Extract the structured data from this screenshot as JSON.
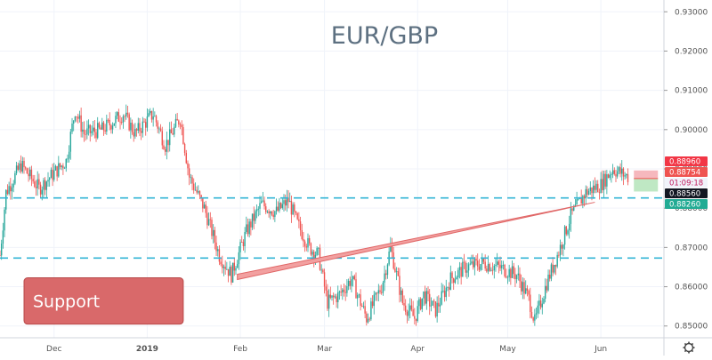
{
  "chart_data": {
    "type": "candlestick",
    "title": "EUR/GBP",
    "ylim": [
      0.847,
      0.933
    ],
    "xlim": [
      "2018-11-13",
      "2019-06-22"
    ],
    "grid": true,
    "y_ticks": [
      "0.93000",
      "0.92000",
      "0.91000",
      "0.90000",
      "0.89000",
      "0.88000",
      "0.87000",
      "0.86000",
      "0.85000"
    ],
    "y_tick_values": [
      0.93,
      0.92,
      0.91,
      0.9,
      0.89,
      0.88,
      0.87,
      0.86,
      0.85
    ],
    "x_ticks": [
      {
        "label": "Dec",
        "date": "2018-12-01"
      },
      {
        "label": "2019",
        "date": "2019-01-01"
      },
      {
        "label": "Feb",
        "date": "2019-02-01"
      },
      {
        "label": "Mar",
        "date": "2019-03-01"
      },
      {
        "label": "Apr",
        "date": "2019-04-01"
      },
      {
        "label": "May",
        "date": "2019-05-01"
      },
      {
        "label": "Jun",
        "date": "2019-06-01"
      }
    ],
    "price_path": [
      [
        "2018-11-13",
        0.868
      ],
      [
        "2018-11-15",
        0.884
      ],
      [
        "2018-11-20",
        0.891
      ],
      [
        "2018-11-26",
        0.885
      ],
      [
        "2018-12-01",
        0.889
      ],
      [
        "2018-12-05",
        0.892
      ],
      [
        "2018-12-08",
        0.905
      ],
      [
        "2018-12-11",
        0.899
      ],
      [
        "2018-12-17",
        0.9
      ],
      [
        "2018-12-24",
        0.904
      ],
      [
        "2018-12-28",
        0.899
      ],
      [
        "2019-01-03",
        0.904
      ],
      [
        "2019-01-07",
        0.896
      ],
      [
        "2019-01-12",
        0.903
      ],
      [
        "2019-01-15",
        0.888
      ],
      [
        "2019-01-20",
        0.88
      ],
      [
        "2019-01-25",
        0.868
      ],
      [
        "2019-01-29",
        0.863
      ],
      [
        "2019-02-03",
        0.874
      ],
      [
        "2019-02-08",
        0.881
      ],
      [
        "2019-02-13",
        0.879
      ],
      [
        "2019-02-17",
        0.882
      ],
      [
        "2019-02-20",
        0.876
      ],
      [
        "2019-02-24",
        0.87
      ],
      [
        "2019-02-27",
        0.868
      ],
      [
        "2019-03-02",
        0.856
      ],
      [
        "2019-03-06",
        0.858
      ],
      [
        "2019-03-10",
        0.862
      ],
      [
        "2019-03-15",
        0.852
      ],
      [
        "2019-03-20",
        0.86
      ],
      [
        "2019-03-23",
        0.87
      ],
      [
        "2019-03-27",
        0.856
      ],
      [
        "2019-03-31",
        0.852
      ],
      [
        "2019-04-03",
        0.858
      ],
      [
        "2019-04-07",
        0.854
      ],
      [
        "2019-04-12",
        0.862
      ],
      [
        "2019-04-17",
        0.865
      ],
      [
        "2019-04-23",
        0.866
      ],
      [
        "2019-04-28",
        0.865
      ],
      [
        "2019-05-04",
        0.863
      ],
      [
        "2019-05-08",
        0.857
      ],
      [
        "2019-05-10",
        0.851
      ],
      [
        "2019-05-14",
        0.861
      ],
      [
        "2019-05-18",
        0.869
      ],
      [
        "2019-05-22",
        0.878
      ],
      [
        "2019-05-27",
        0.884
      ],
      [
        "2019-06-01",
        0.886
      ],
      [
        "2019-06-05",
        0.89
      ],
      [
        "2019-06-10",
        0.888
      ]
    ],
    "horizontal_lines": [
      {
        "name": "upper-support-line",
        "y": 0.8826,
        "style": "dashed",
        "color": "#33b5d6"
      },
      {
        "name": "lower-support-line",
        "y": 0.8673,
        "style": "dashed",
        "color": "#33b5d6"
      }
    ],
    "support_wedge": {
      "start": [
        "2019-01-31",
        0.8625
      ],
      "end": [
        "2019-05-30",
        0.8815
      ],
      "color": "#e06666"
    },
    "annotation": {
      "text": "Support",
      "color": "#d9696a",
      "x_start": "2018-11-21",
      "x_end": "2019-01-13",
      "y_top": 0.86,
      "y_bottom": 0.855
    },
    "position_box": {
      "x_start": "2019-06-12",
      "x_end": "2019-06-20",
      "entry": 0.88754,
      "target": 0.8896,
      "stop": 0.8856,
      "target_color": "#f6b8bd",
      "stop_color": "#bfe8c4"
    },
    "price_labels": [
      {
        "text": "0.88960",
        "y": 0.8896,
        "bg": "#f23645",
        "fg": "#ffffff"
      },
      {
        "text": "0.88754",
        "y": 0.88754,
        "bg": "#ef5350",
        "fg": "#ffffff"
      },
      {
        "text": "01:09:18",
        "y": 0.886,
        "bg": "#f0f3fa",
        "fg": "#c2185b"
      },
      {
        "text": "0.88560",
        "y": 0.8848,
        "bg": "#131722",
        "fg": "#ffffff"
      },
      {
        "text": "0.88260",
        "y": 0.8826,
        "bg": "#22ab94",
        "fg": "#ffffff"
      }
    ],
    "colors": {
      "up": "#26a69a",
      "down": "#ef5350",
      "grid": "#f0f3fa",
      "axis": "#555555",
      "title": "#5d7081"
    },
    "settings_icon": "gear-icon"
  }
}
